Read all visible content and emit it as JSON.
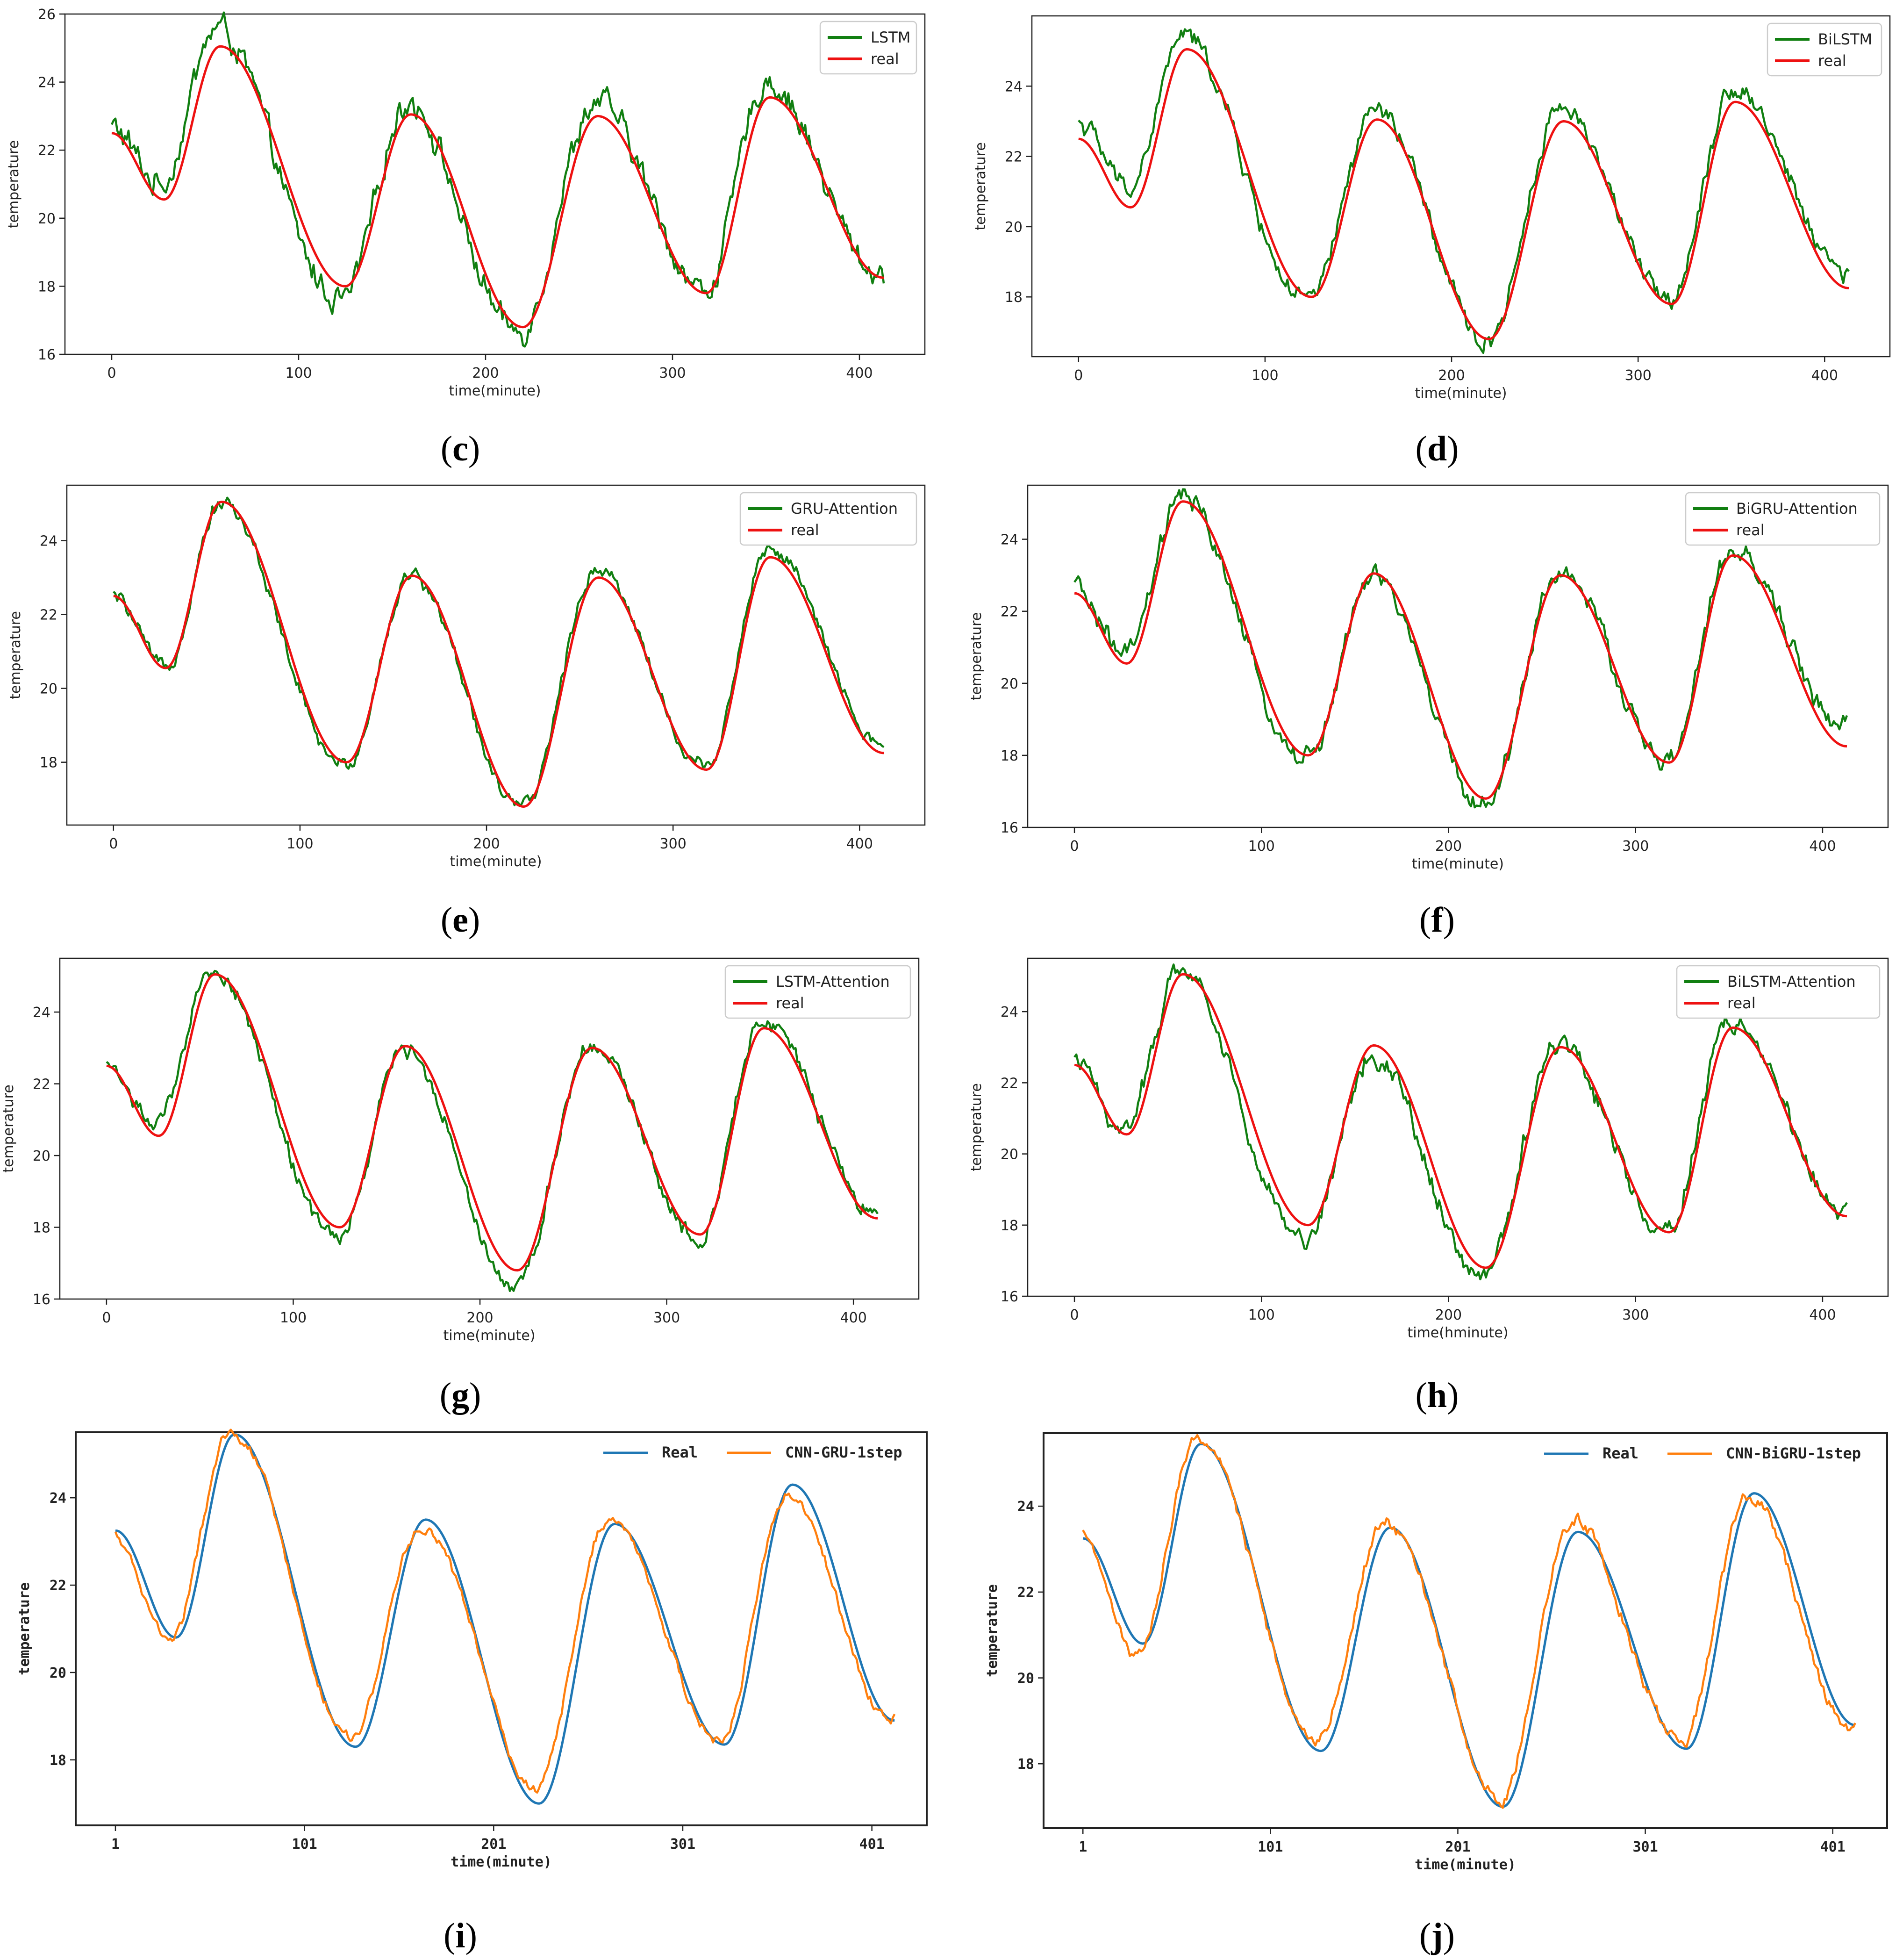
{
  "colors": {
    "green": "#117f11",
    "red": "#ee1111",
    "blue": "#1f77b4",
    "orange": "#ff7f0e",
    "frame": "#222222"
  },
  "chart_data": [
    {
      "panel": "c",
      "panel_label": "c",
      "type": "line",
      "xlabel": "time(minute)",
      "ylabel": "temperature",
      "xlim": [
        -25,
        435
      ],
      "ylim": [
        16,
        26
      ],
      "xticks": [
        0,
        100,
        200,
        300,
        400
      ],
      "xtick_labels": [
        "0",
        "100",
        "200",
        "300",
        "400"
      ],
      "yticks": [
        16,
        18,
        20,
        22,
        24,
        26
      ],
      "ytick_labels": [
        "16",
        "18",
        "20",
        "22",
        "24",
        "26"
      ],
      "legend": "top-right",
      "series": [
        {
          "name": "LSTM",
          "color": "green",
          "role": "pred"
        },
        {
          "name": "real",
          "color": "red",
          "role": "real"
        }
      ],
      "pred_offsets": [
        [
          0,
          0.2
        ],
        [
          40,
          0.6
        ],
        [
          60,
          0.55
        ],
        [
          100,
          -0.5
        ],
        [
          125,
          -0.4
        ],
        [
          160,
          0.45
        ],
        [
          190,
          -0.25
        ],
        [
          215,
          -0.15
        ],
        [
          260,
          0.45
        ],
        [
          300,
          0.3
        ],
        [
          320,
          0.0
        ],
        [
          350,
          0.5
        ],
        [
          380,
          0.2
        ],
        [
          413,
          0.1
        ]
      ],
      "noise": 0.28,
      "shift": -1.5,
      "style": "py"
    },
    {
      "panel": "d",
      "panel_label": "d",
      "type": "line",
      "xlabel": "time(minute)",
      "ylabel": "temperature",
      "xlim": [
        -25,
        435
      ],
      "ylim": [
        16.3,
        26
      ],
      "xticks": [
        0,
        100,
        200,
        300,
        400
      ],
      "xtick_labels": [
        "0",
        "100",
        "200",
        "300",
        "400"
      ],
      "yticks": [
        18,
        20,
        22,
        24
      ],
      "ytick_labels": [
        "18",
        "20",
        "22",
        "24"
      ],
      "legend": "top-right",
      "series": [
        {
          "name": "BiLSTM",
          "color": "green",
          "role": "pred"
        },
        {
          "name": "real",
          "color": "red",
          "role": "real"
        }
      ],
      "pred_offsets": [
        [
          0,
          0.5
        ],
        [
          30,
          0.6
        ],
        [
          55,
          0.45
        ],
        [
          100,
          -0.3
        ],
        [
          125,
          -0.1
        ],
        [
          160,
          0.3
        ],
        [
          215,
          -0.1
        ],
        [
          260,
          0.45
        ],
        [
          300,
          0.1
        ],
        [
          320,
          0.2
        ],
        [
          350,
          0.4
        ],
        [
          413,
          0.5
        ]
      ],
      "noise": 0.2,
      "shift": -1.0,
      "style": "py"
    },
    {
      "panel": "e",
      "panel_label": "e",
      "type": "line",
      "xlabel": "time(minute)",
      "ylabel": "temperature",
      "xlim": [
        -25,
        435
      ],
      "ylim": [
        16.3,
        25.5
      ],
      "xticks": [
        0,
        100,
        200,
        300,
        400
      ],
      "xtick_labels": [
        "0",
        "100",
        "200",
        "300",
        "400"
      ],
      "yticks": [
        18,
        20,
        22,
        24
      ],
      "ytick_labels": [
        "18",
        "20",
        "22",
        "24"
      ],
      "legend": "top-right",
      "series": [
        {
          "name": "GRU-Attention",
          "color": "green",
          "role": "pred"
        },
        {
          "name": "real",
          "color": "red",
          "role": "real"
        }
      ],
      "pred_offsets": [
        [
          0,
          0.0
        ],
        [
          60,
          0.0
        ],
        [
          100,
          -0.2
        ],
        [
          125,
          -0.1
        ],
        [
          160,
          0.0
        ],
        [
          215,
          -0.1
        ],
        [
          260,
          0.3
        ],
        [
          300,
          0.0
        ],
        [
          350,
          0.25
        ],
        [
          413,
          0.15
        ]
      ],
      "noise": 0.14,
      "shift": -0.5,
      "style": "py"
    },
    {
      "panel": "f",
      "panel_label": "f",
      "type": "line",
      "xlabel": "time(minute)",
      "ylabel": "temperature",
      "xlim": [
        -25,
        435
      ],
      "ylim": [
        16,
        25.5
      ],
      "xticks": [
        0,
        100,
        200,
        300,
        400
      ],
      "xtick_labels": [
        "0",
        "100",
        "200",
        "300",
        "400"
      ],
      "yticks": [
        16,
        18,
        20,
        22,
        24
      ],
      "ytick_labels": [
        "16",
        "18",
        "20",
        "22",
        "24"
      ],
      "legend": "top-right",
      "series": [
        {
          "name": "BiGRU-Attention",
          "color": "green",
          "role": "pred"
        },
        {
          "name": "real",
          "color": "red",
          "role": "real"
        }
      ],
      "pred_offsets": [
        [
          0,
          0.15
        ],
        [
          30,
          0.25
        ],
        [
          60,
          0.1
        ],
        [
          100,
          -0.35
        ],
        [
          125,
          -0.05
        ],
        [
          160,
          -0.15
        ],
        [
          215,
          -0.2
        ],
        [
          260,
          0.1
        ],
        [
          300,
          0.0
        ],
        [
          350,
          0.05
        ],
        [
          380,
          0.3
        ],
        [
          413,
          0.6
        ]
      ],
      "noise": 0.2,
      "shift": -0.5,
      "style": "py"
    },
    {
      "panel": "g",
      "panel_label": "g",
      "type": "line",
      "xlabel": "time(minute)",
      "ylabel": "temperature",
      "xlim": [
        -25,
        435
      ],
      "ylim": [
        16,
        25.5
      ],
      "xticks": [
        0,
        100,
        200,
        300,
        400
      ],
      "xtick_labels": [
        "0",
        "100",
        "200",
        "300",
        "400"
      ],
      "yticks": [
        16,
        18,
        20,
        22,
        24
      ],
      "ytick_labels": [
        "16",
        "18",
        "20",
        "22",
        "24"
      ],
      "legend": "top-right",
      "series": [
        {
          "name": "LSTM-Attention",
          "color": "green",
          "role": "pred"
        },
        {
          "name": "real",
          "color": "red",
          "role": "real"
        }
      ],
      "pred_offsets": [
        [
          0,
          0.0
        ],
        [
          30,
          0.4
        ],
        [
          60,
          0.1
        ],
        [
          100,
          -0.3
        ],
        [
          125,
          -0.3
        ],
        [
          160,
          -0.05
        ],
        [
          215,
          -0.45
        ],
        [
          260,
          0.15
        ],
        [
          300,
          0.0
        ],
        [
          320,
          -0.1
        ],
        [
          350,
          0.25
        ],
        [
          413,
          0.1
        ]
      ],
      "noise": 0.16,
      "shift": -0.7,
      "style": "py"
    },
    {
      "panel": "h",
      "panel_label": "h",
      "type": "line",
      "xlabel": "time(hminute)",
      "ylabel": "temperature",
      "xlim": [
        -25,
        435
      ],
      "ylim": [
        16,
        25.5
      ],
      "xticks": [
        0,
        100,
        200,
        300,
        400
      ],
      "xtick_labels": [
        "0",
        "100",
        "200",
        "300",
        "400"
      ],
      "yticks": [
        16,
        18,
        20,
        22,
        24
      ],
      "ytick_labels": [
        "16",
        "18",
        "20",
        "22",
        "24"
      ],
      "legend": "top-right",
      "series": [
        {
          "name": "BiLSTM-Attention",
          "color": "green",
          "role": "pred"
        },
        {
          "name": "real",
          "color": "red",
          "role": "real"
        }
      ],
      "pred_offsets": [
        [
          0,
          0.1
        ],
        [
          30,
          0.2
        ],
        [
          60,
          0.2
        ],
        [
          100,
          -0.6
        ],
        [
          125,
          -0.3
        ],
        [
          160,
          -0.3
        ],
        [
          215,
          -0.3
        ],
        [
          260,
          0.2
        ],
        [
          300,
          0.0
        ],
        [
          350,
          0.2
        ],
        [
          413,
          0.1
        ]
      ],
      "noise": 0.2,
      "shift": -1.2,
      "style": "py"
    },
    {
      "panel": "i",
      "panel_label": "i",
      "type": "line",
      "xlabel": "time(minute)",
      "ylabel": "temperature",
      "xlim": [
        -20,
        430
      ],
      "ylim": [
        16.5,
        25.5
      ],
      "xticks": [
        1,
        101,
        201,
        301,
        401
      ],
      "xtick_labels": [
        "1",
        "101",
        "201",
        "301",
        "401"
      ],
      "yticks": [
        18,
        20,
        22,
        24
      ],
      "ytick_labels": [
        "18",
        "20",
        "22",
        "24"
      ],
      "legend": "top-right-horizontal",
      "series": [
        {
          "name": "Real",
          "color": "blue",
          "role": "real"
        },
        {
          "name": "CNN-GRU-1step",
          "color": "orange",
          "role": "pred"
        }
      ],
      "real_keypoints": [
        [
          1,
          23.25
        ],
        [
          33,
          20.8
        ],
        [
          64,
          25.45
        ],
        [
          128,
          18.3
        ],
        [
          165,
          23.5
        ],
        [
          225,
          17.0
        ],
        [
          265,
          23.4
        ],
        [
          323,
          18.35
        ],
        [
          359,
          24.3
        ],
        [
          413,
          18.9
        ]
      ],
      "pred_offsets": [
        [
          1,
          -0.1
        ],
        [
          40,
          0.0
        ],
        [
          70,
          0.0
        ],
        [
          80,
          0.3
        ],
        [
          100,
          0.25
        ],
        [
          130,
          0.2
        ],
        [
          165,
          -0.25
        ],
        [
          200,
          0.45
        ],
        [
          225,
          0.35
        ],
        [
          265,
          0.1
        ],
        [
          300,
          0.1
        ],
        [
          330,
          0.1
        ],
        [
          360,
          -0.25
        ],
        [
          413,
          0.1
        ]
      ],
      "noise": 0.08,
      "shift": -2.5,
      "style": "mono"
    },
    {
      "panel": "j",
      "panel_label": "j",
      "type": "line",
      "xlabel": "time(minute)",
      "ylabel": "temperature",
      "xlim": [
        -20,
        430
      ],
      "ylim": [
        16.5,
        25.7
      ],
      "xticks": [
        1,
        101,
        201,
        301,
        401
      ],
      "xtick_labels": [
        "1",
        "101",
        "201",
        "301",
        "401"
      ],
      "yticks": [
        18,
        20,
        22,
        24
      ],
      "ytick_labels": [
        "18",
        "20",
        "22",
        "24"
      ],
      "legend": "top-right-horizontal",
      "series": [
        {
          "name": "Real",
          "color": "blue",
          "role": "real"
        },
        {
          "name": "CNN-BiGRU-1step",
          "color": "orange",
          "role": "pred"
        }
      ],
      "real_keypoints": [
        [
          1,
          23.25
        ],
        [
          33,
          20.8
        ],
        [
          64,
          25.45
        ],
        [
          128,
          18.3
        ],
        [
          165,
          23.5
        ],
        [
          225,
          17.0
        ],
        [
          265,
          23.4
        ],
        [
          323,
          18.35
        ],
        [
          359,
          24.3
        ],
        [
          413,
          18.9
        ]
      ],
      "pred_offsets": [
        [
          1,
          0.1
        ],
        [
          30,
          -0.25
        ],
        [
          65,
          0.1
        ],
        [
          75,
          0.3
        ],
        [
          100,
          0.3
        ],
        [
          130,
          0.25
        ],
        [
          170,
          0.1
        ],
        [
          200,
          0.45
        ],
        [
          225,
          0.1
        ],
        [
          265,
          0.3
        ],
        [
          300,
          0.15
        ],
        [
          330,
          0.2
        ],
        [
          360,
          -0.05
        ],
        [
          413,
          -0.1
        ]
      ],
      "noise": 0.1,
      "shift": -2.5,
      "style": "mono"
    }
  ],
  "real_keypoints_default": [
    [
      0,
      22.5
    ],
    [
      28,
      20.55
    ],
    [
      58,
      25.05
    ],
    [
      125,
      18.0
    ],
    [
      160,
      23.05
    ],
    [
      220,
      16.8
    ],
    [
      260,
      23.0
    ],
    [
      318,
      17.8
    ],
    [
      352,
      23.55
    ],
    [
      413,
      18.25
    ]
  ]
}
